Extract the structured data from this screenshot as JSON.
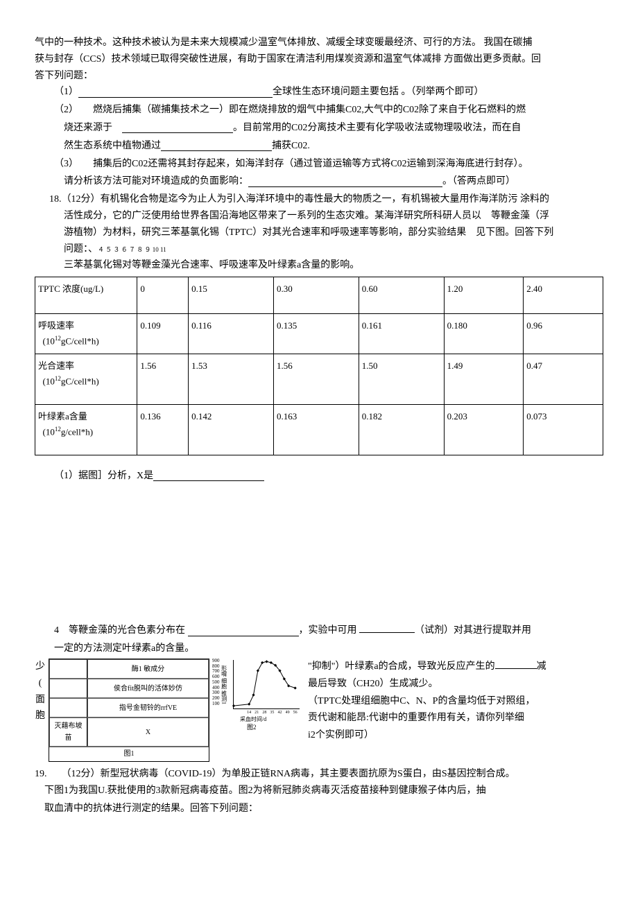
{
  "intro": {
    "line1": "气中的一种技术。这种技术被认为是未来大规模减少温室气体排放、减缓全球变暖最经济、可行的方法。 我国在碳捕",
    "line2": "获与封存（CCS）技术领域已取得突破性进展，有助于国家在清洁利用煤炭资源和温室气体减排 方面做出更多贡献。回",
    "line3": "答下列问题：",
    "item1_tail": "全球性生态环境问题主要包括 。（列举两个即可）",
    "item2_a": "（2）　　燃烧后捕集（碳捕集技术之一）即在燃烧排放的烟气中捕集C02,大气中的C02除了来自于化石燃料的燃",
    "item2_b_pre": "烧还来源于　",
    "item2_b_post": "。目前常用的C02分离技术主要有化学吸收法或物理吸收法，而在自",
    "item2_c_pre": "然生态系统中植物通过",
    "item2_c_post": "捕获C02.",
    "item3_a": "（3）　　捕集后的C02还需将其封存起来，如海洋封存（通过管道运输等方式将C02运输到深海海底进行封存）。",
    "item3_b_pre": "请分析该方法可能对环境造成的负面影响：",
    "item3_b_post": "。（答两点即可）"
  },
  "q18": {
    "num": "18.",
    "intro1": "（12分）有机锡化合物是迄今为止人为引入海洋环境中的毒性最大的物质之一，有机锡被大量用作海洋防污 涂料的",
    "intro2": "活性成分，它的广泛使用给世界各国沿海地区带来了一系列的生态灾难。某海洋研究所科研人员以　等鞭金藻（浮",
    "intro3": "游植物）为材料，研究三苯基氯化锡（TPTC）对其光合速率和呼吸速率等影响，部分实验结果　见下图。回答下列",
    "intro4_pre": "问题：、",
    "intro4_nums": "４ ５ ３ ６ ７ ８ ９ 10 11",
    "caption": "三苯基氯化锡对等鞭金藻光合速率、呼吸速率及叶绿素a含量的影响。",
    "sub1_pre": "（1）据图］分析，X是",
    "sub4_pre": "4　等鞭金藻的光合色素分布在 ",
    "sub4_mid": "，实验中可用 ",
    "sub4_post": "（试剂）对其进行提取并用",
    "sub4b": "一定的方法测定叶绿素a的含量。"
  },
  "table": {
    "columns": [
      {
        "width": "18%",
        "align": "left"
      },
      {
        "width": "9%",
        "align": "left"
      },
      {
        "width": "15%",
        "align": "left"
      },
      {
        "width": "15%",
        "align": "left"
      },
      {
        "width": "15%",
        "align": "left"
      },
      {
        "width": "14%",
        "align": "left"
      },
      {
        "width": "14%",
        "align": "left"
      }
    ],
    "rows": [
      [
        "TPTC 浓度(ug/L)",
        "0",
        "0.15",
        "0.30",
        "0.60",
        "1.20",
        "2.40"
      ],
      [
        "呼吸速率\n(10¹²gC/cell*h)",
        "0.109",
        "0.116",
        "0.135",
        "0.161",
        "0.180",
        "0.96"
      ],
      [
        "光合速率\n(10¹²gC/cell*h)",
        "1.56",
        "1.53",
        "1.56",
        "1.50",
        "1.49",
        "0.47"
      ],
      [
        "叶绿素a含量\n(10¹²g/cell*h)",
        "0.136",
        "0.142",
        "0.163",
        "0.182",
        "0.203",
        "0.073"
      ]
    ],
    "row_heights": [
      "40px",
      "40px",
      "60px",
      "60px"
    ],
    "border_color": "#000000"
  },
  "figure1": {
    "rows": [
      [
        "",
        "酶1 敏成分"
      ],
      [
        "",
        "侯合fit脱叫的活体妙仿"
      ],
      [
        "",
        "指号金韧铃的rrfVE"
      ],
      [
        "灭藉布坡苗",
        "X"
      ]
    ],
    "footer": "图1"
  },
  "figure2": {
    "type": "line",
    "y_ticks": [
      "900",
      "800",
      "700",
      "600",
      "500",
      "400",
      "300",
      "200",
      "100"
    ],
    "ylabel_chars": "形喟\n细胞\n推测1",
    "x_ticks": [
      "14",
      "21",
      "28",
      "35",
      "42",
      "49",
      "56"
    ],
    "xlabel": "采血时间/d",
    "footer": "图2",
    "points_x": [
      0,
      14,
      18,
      22,
      26,
      30,
      34,
      38,
      42,
      46,
      50,
      56
    ],
    "points_y": [
      50,
      80,
      250,
      700,
      850,
      870,
      850,
      800,
      700,
      550,
      420,
      380
    ],
    "ylim": [
      0,
      900
    ],
    "xlim": [
      0,
      60
    ],
    "line_color": "#000000",
    "marker": "diamond",
    "marker_size": 3
  },
  "overlay": {
    "l1_pre": "\"抑制\"）叶绿素a的合成，导致光反应产生的",
    "l1_post": "减",
    "l2": "最后导致（CH20）生成减少。",
    "l3": "（TPTC处理组细胞中C、N、P的含量均低于对照组，",
    "l4": "贡代谢和能昂:代谢中的重要作用有关，请你列举细",
    "l5": "i2个实例即可）",
    "left_chars": [
      "少",
      "(",
      "面",
      "胞"
    ]
  },
  "q19": {
    "line1": "19.　　（12分）新型冠状病毒（COVID-19）为单股正链RNA病毒，其主要表面抗原为S蛋白，由S基因控制合成。",
    "line2": "下图1为我国U.获批使用的3款新冠病毒疫苗。图2为将新冠肺炎病毒灭活疫苗接种到健康猴子体内后，抽",
    "line3": "取血清中的抗体进行测定的结果。回答下列问题："
  }
}
